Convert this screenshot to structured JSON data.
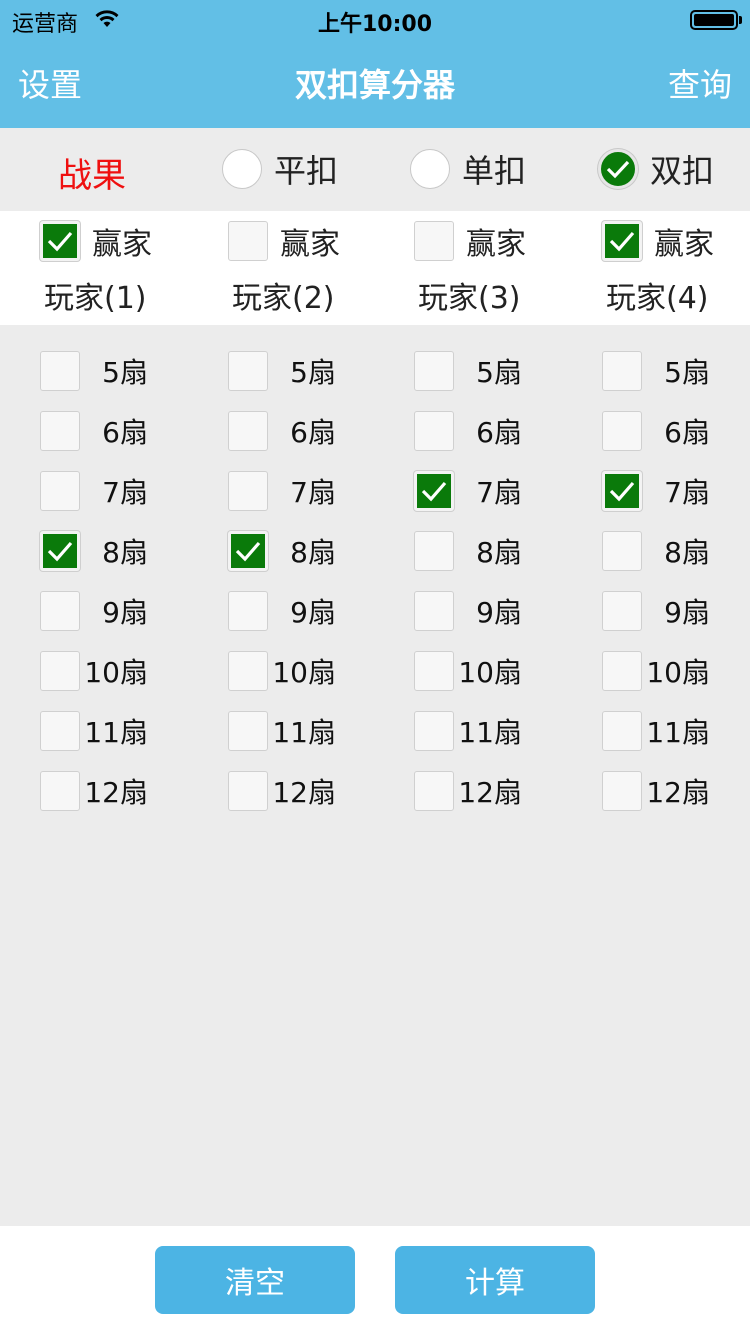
{
  "status": {
    "carrier": "运营商",
    "time": "上午10:00"
  },
  "nav": {
    "left": "设置",
    "title": "双扣算分器",
    "right": "查询"
  },
  "mode": {
    "label": "战果",
    "options": [
      {
        "label": "平扣",
        "selected": false
      },
      {
        "label": "单扣",
        "selected": false
      },
      {
        "label": "双扣",
        "selected": true
      }
    ]
  },
  "players": [
    {
      "winner_label": "赢家",
      "name": "玩家(1)",
      "winner": true
    },
    {
      "winner_label": "赢家",
      "name": "玩家(2)",
      "winner": false
    },
    {
      "winner_label": "赢家",
      "name": "玩家(3)",
      "winner": false
    },
    {
      "winner_label": "赢家",
      "name": "玩家(4)",
      "winner": true
    }
  ],
  "fans": [
    "5扇",
    "6扇",
    "7扇",
    "8扇",
    "9扇",
    "10扇",
    "11扇",
    "12扇"
  ],
  "selected_fans": [
    "8扇",
    "8扇",
    "7扇",
    "7扇"
  ],
  "buttons": {
    "clear": "清空",
    "calculate": "计算"
  },
  "colors": {
    "header": "#62bfe6",
    "result_label": "#ef1010",
    "check_on": "#0a7a0a",
    "button": "#4cb4e4",
    "background": "#ececec"
  }
}
